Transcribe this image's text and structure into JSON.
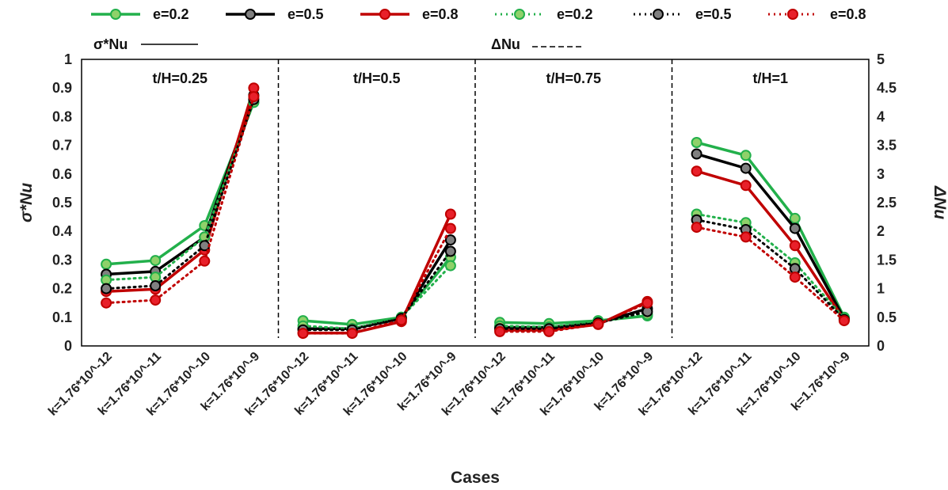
{
  "chart_data": {
    "type": "line",
    "xlabel": "Cases",
    "ylabel_left": "σ*Nu",
    "ylabel_right": "ΔNu",
    "ylim_left": [
      0,
      1
    ],
    "ylim_right": [
      0,
      5
    ],
    "yticks_left": [
      "0",
      "0.1",
      "0.2",
      "0.3",
      "0.4",
      "0.5",
      "0.6",
      "0.7",
      "0.8",
      "0.9",
      "1"
    ],
    "yticks_right": [
      "0",
      "0.5",
      "1",
      "1.5",
      "2",
      "2.5",
      "3",
      "3.5",
      "4",
      "4.5",
      "5"
    ],
    "categories": [
      "k=1.76*10^-12",
      "k=1.76*10^-11",
      "k=1.76*10^-10",
      "k=1.76*10^-9",
      "k=1.76*10^-12",
      "k=1.76*10^-11",
      "k=1.76*10^-10",
      "k=1.76*10^-9",
      "k=1.76*10^-12",
      "k=1.76*10^-11",
      "k=1.76*10^-10",
      "k=1.76*10^-9",
      "k=1.76*10^-12",
      "k=1.76*10^-11",
      "k=1.76*10^-10",
      "k=1.76*10^-9"
    ],
    "panels": [
      "t/H=0.25",
      "t/H=0.5",
      "t/H=0.75",
      "t/H=1"
    ],
    "legend_group_labels": {
      "solid": "σ*Nu",
      "dashed": "ΔNu"
    },
    "legend_placement": "top",
    "grid": false,
    "series": [
      {
        "name": "e=0.2",
        "group": "σ*Nu",
        "style": "solid",
        "color": "#22b04b",
        "marker": "#8fd16a",
        "axis": "left",
        "values": [
          0.285,
          0.298,
          0.42,
          0.85,
          0.088,
          0.075,
          0.1,
          0.31,
          0.082,
          0.078,
          0.088,
          0.105,
          0.71,
          0.665,
          0.445,
          0.1
        ]
      },
      {
        "name": "e=0.5",
        "group": "σ*Nu",
        "style": "solid",
        "color": "#000000",
        "marker": "#808080",
        "axis": "left",
        "values": [
          0.25,
          0.26,
          0.38,
          0.875,
          0.06,
          0.06,
          0.095,
          0.37,
          0.065,
          0.065,
          0.08,
          0.13,
          0.67,
          0.62,
          0.41,
          0.095
        ]
      },
      {
        "name": "e=0.8",
        "group": "σ*Nu",
        "style": "solid",
        "color": "#c00000",
        "marker": "#e8202a",
        "axis": "left",
        "values": [
          0.19,
          0.198,
          0.335,
          0.9,
          0.045,
          0.045,
          0.085,
          0.46,
          0.055,
          0.055,
          0.075,
          0.155,
          0.61,
          0.56,
          0.35,
          0.09
        ]
      },
      {
        "name": "e=0.2",
        "group": "ΔNu",
        "style": "dotted",
        "color": "#22b04b",
        "marker": "#8fd16a",
        "axis": "right",
        "values": [
          1.15,
          1.2,
          1.9,
          4.25,
          0.35,
          0.3,
          0.5,
          1.4,
          0.35,
          0.33,
          0.42,
          0.55,
          2.3,
          2.15,
          1.45,
          0.48
        ]
      },
      {
        "name": "e=0.5",
        "group": "ΔNu",
        "style": "dotted",
        "color": "#000000",
        "marker": "#808080",
        "axis": "right",
        "values": [
          1.0,
          1.05,
          1.75,
          4.3,
          0.28,
          0.28,
          0.48,
          1.65,
          0.3,
          0.3,
          0.4,
          0.6,
          2.2,
          2.03,
          1.35,
          0.46
        ]
      },
      {
        "name": "e=0.8",
        "group": "ΔNu",
        "style": "dotted",
        "color": "#c00000",
        "marker": "#e8202a",
        "axis": "right",
        "values": [
          0.75,
          0.8,
          1.48,
          4.35,
          0.22,
          0.22,
          0.45,
          2.05,
          0.25,
          0.25,
          0.38,
          0.75,
          2.07,
          1.9,
          1.2,
          0.44
        ]
      }
    ]
  }
}
